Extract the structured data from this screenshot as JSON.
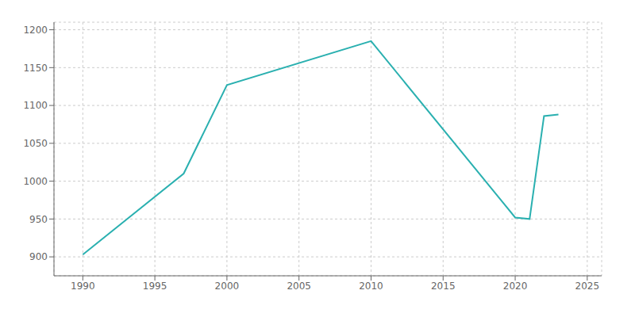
{
  "chart_data": {
    "type": "line",
    "x": [
      1990,
      1997,
      2000,
      2010,
      2020,
      2021,
      2022,
      2023
    ],
    "values": [
      903,
      1010,
      1127,
      1185,
      952,
      950,
      1086,
      1088
    ],
    "color": "#2ab0b0",
    "xlim": [
      1988,
      2026
    ],
    "ylim": [
      875,
      1210
    ],
    "xticks": [
      1990,
      1995,
      2000,
      2005,
      2010,
      2015,
      2020,
      2025
    ],
    "yticks": [
      900,
      950,
      1000,
      1050,
      1100,
      1150,
      1200
    ],
    "grid": true
  }
}
